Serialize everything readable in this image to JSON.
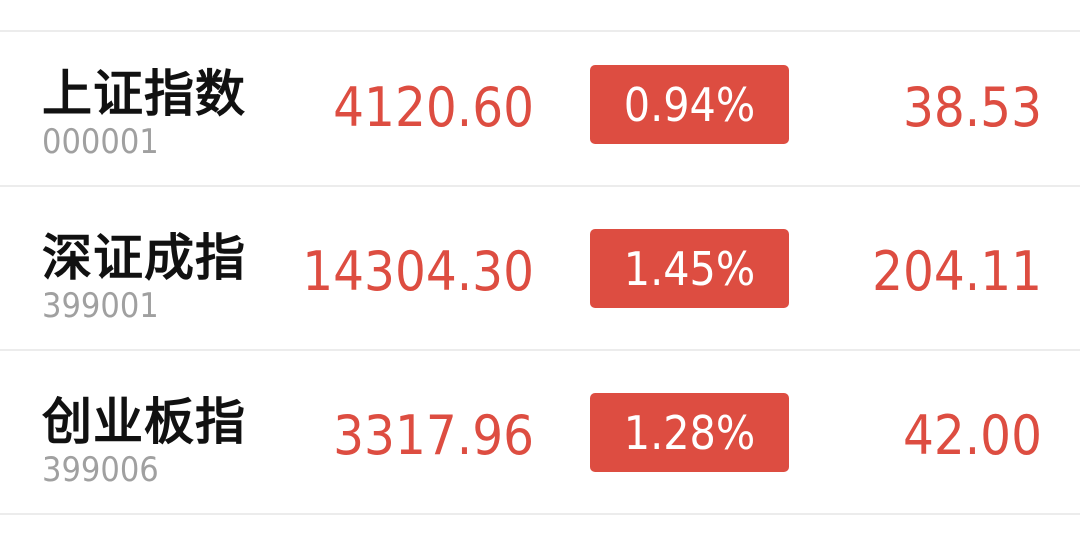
{
  "accent_color": "#dd4d41",
  "indices": [
    {
      "name": "上证指数",
      "code": "000001",
      "price": "4120.60",
      "change_pct": "0.94%",
      "change": "38.53"
    },
    {
      "name": "深证成指",
      "code": "399001",
      "price": "14304.30",
      "change_pct": "1.45%",
      "change": "204.11"
    },
    {
      "name": "创业板指",
      "code": "399006",
      "price": "3317.96",
      "change_pct": "1.28%",
      "change": "42.00"
    }
  ]
}
